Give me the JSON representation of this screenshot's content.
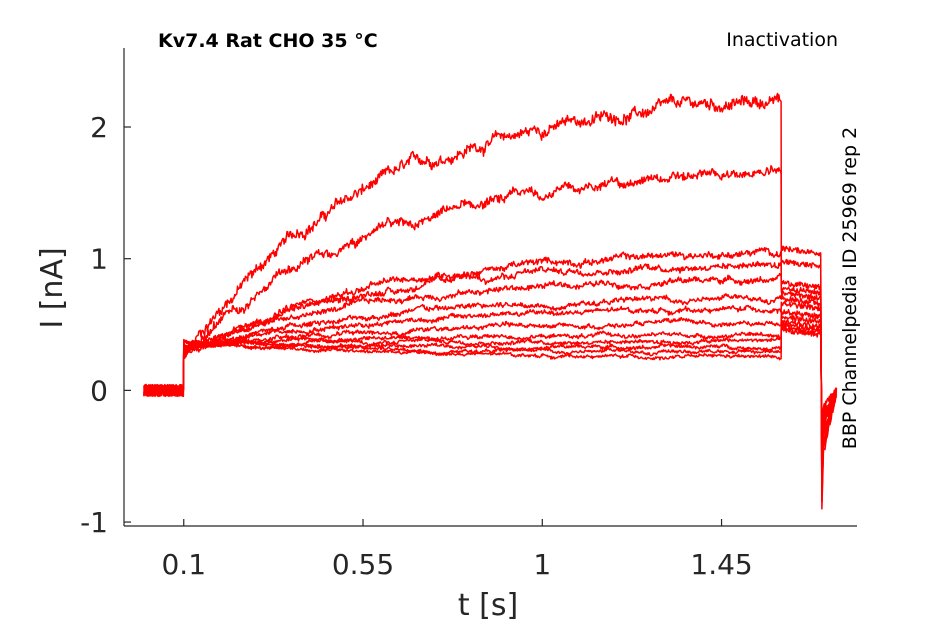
{
  "header": {
    "left_title": "Kv7.4  Rat  CHO  35 °C",
    "right_title": "Inactivation"
  },
  "side_label": "BBP Channelpedia ID 25969 rep 2",
  "chart_data": {
    "type": "line",
    "xlabel": "t [s]",
    "ylabel": "I [nA]",
    "xlim": [
      -0.05,
      1.79
    ],
    "ylim": [
      -1.03,
      2.6
    ],
    "xticks": [
      0.1,
      0.55,
      1,
      1.45
    ],
    "xtick_labels": [
      "0.1",
      "0.55",
      "1",
      "1.45"
    ],
    "yticks": [
      -1,
      0,
      1,
      2
    ],
    "ytick_labels": [
      "-1",
      "0",
      "1",
      "2"
    ],
    "grid": false,
    "color": "#ff0000",
    "step_on": 0.1,
    "step_off": 1.6,
    "tail_end": 1.7,
    "record_start": 0.0,
    "record_end": 1.74,
    "series": [
      {
        "onset": 0.27,
        "peak": 2.2,
        "tail": 1.08
      },
      {
        "onset": 0.25,
        "peak": 1.65,
        "tail": 0.98
      },
      {
        "onset": 0.27,
        "peak": 1.05,
        "tail": 0.82
      },
      {
        "onset": 0.28,
        "peak": 0.97,
        "tail": 0.78
      },
      {
        "onset": 0.3,
        "peak": 0.85,
        "tail": 0.74
      },
      {
        "onset": 0.3,
        "peak": 0.7,
        "tail": 0.7
      },
      {
        "onset": 0.31,
        "peak": 0.62,
        "tail": 0.66
      },
      {
        "onset": 0.32,
        "peak": 0.51,
        "tail": 0.6
      },
      {
        "onset": 0.34,
        "peak": 0.42,
        "tail": 0.56
      },
      {
        "onset": 0.34,
        "peak": 0.38,
        "tail": 0.52
      },
      {
        "onset": 0.36,
        "peak": 0.33,
        "tail": 0.5
      },
      {
        "onset": 0.36,
        "peak": 0.29,
        "tail": 0.48
      },
      {
        "onset": 0.38,
        "peak": 0.25,
        "tail": 0.46
      }
    ]
  }
}
